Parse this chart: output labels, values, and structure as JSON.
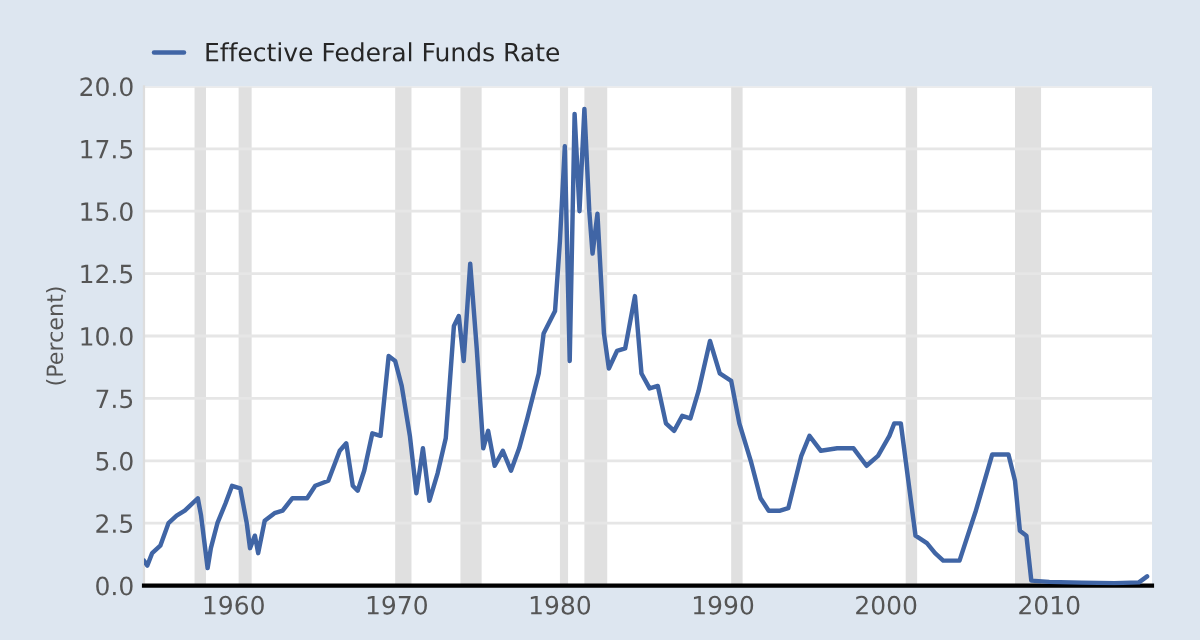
{
  "chart_data": {
    "type": "line",
    "ylabel": "(Percent)",
    "x": [
      1954.5,
      1954.7,
      1955.0,
      1955.5,
      1956.0,
      1956.5,
      1957.0,
      1957.8,
      1958.0,
      1958.4,
      1958.6,
      1959.0,
      1959.5,
      1959.9,
      1960.4,
      1960.8,
      1961.0,
      1961.3,
      1961.5,
      1961.9,
      1962.5,
      1963.0,
      1963.6,
      1964.5,
      1965.0,
      1965.8,
      1966.5,
      1966.9,
      1967.3,
      1967.6,
      1968.0,
      1968.5,
      1969.0,
      1969.5,
      1969.9,
      1970.3,
      1970.8,
      1971.2,
      1971.6,
      1972.0,
      1972.5,
      1973.0,
      1973.5,
      1973.8,
      1974.1,
      1974.5,
      1974.9,
      1975.3,
      1975.6,
      1976.0,
      1976.5,
      1977.0,
      1977.5,
      1978.0,
      1978.7,
      1979.0,
      1979.7,
      1980.0,
      1980.3,
      1980.6,
      1980.9,
      1981.2,
      1981.5,
      1981.8,
      1982.0,
      1982.3,
      1982.7,
      1983.0,
      1983.5,
      1984.0,
      1984.6,
      1985.0,
      1985.5,
      1986.0,
      1986.5,
      1987.0,
      1987.5,
      1988.0,
      1988.5,
      1989.2,
      1989.8,
      1990.5,
      1991.0,
      1991.7,
      1992.3,
      1992.8,
      1993.5,
      1994.0,
      1994.8,
      1995.3,
      1996.0,
      1997.0,
      1998.0,
      1998.8,
      1999.5,
      2000.2,
      2000.5,
      2000.9,
      2001.3,
      2001.8,
      2002.5,
      2003.0,
      2003.5,
      2004.5,
      2005.5,
      2006.5,
      2007.5,
      2007.9,
      2008.2,
      2008.6,
      2008.9,
      2010.0,
      2012.0,
      2014.0,
      2015.5,
      2016.0
    ],
    "series": [
      {
        "name": "Effective Federal Funds Rate",
        "color": "#4065a5",
        "values": [
          1.0,
          0.8,
          1.3,
          1.6,
          2.5,
          2.8,
          3.0,
          3.5,
          2.8,
          0.7,
          1.5,
          2.5,
          3.3,
          4.0,
          3.9,
          2.5,
          1.5,
          2.0,
          1.3,
          2.6,
          2.9,
          3.0,
          3.5,
          3.5,
          4.0,
          4.2,
          5.4,
          5.7,
          4.0,
          3.8,
          4.6,
          6.1,
          6.0,
          9.2,
          9.0,
          8.0,
          6.0,
          3.7,
          5.5,
          3.4,
          4.5,
          5.9,
          10.4,
          10.8,
          9.0,
          12.9,
          9.5,
          5.5,
          6.2,
          4.8,
          5.4,
          4.6,
          5.5,
          6.7,
          8.5,
          10.1,
          11.0,
          13.8,
          17.6,
          9.0,
          18.9,
          15.0,
          19.1,
          15.0,
          13.3,
          14.9,
          10.1,
          8.7,
          9.4,
          9.5,
          11.6,
          8.5,
          7.9,
          8.0,
          6.5,
          6.2,
          6.8,
          6.7,
          7.8,
          9.8,
          8.5,
          8.2,
          6.5,
          5.0,
          3.5,
          3.0,
          3.0,
          3.1,
          5.2,
          6.0,
          5.4,
          5.5,
          5.5,
          4.8,
          5.2,
          6.0,
          6.5,
          6.5,
          4.5,
          2.0,
          1.7,
          1.3,
          1.0,
          1.0,
          3.0,
          5.25,
          5.25,
          4.2,
          2.2,
          2.0,
          0.2,
          0.15,
          0.12,
          0.1,
          0.13,
          0.37
        ]
      }
    ],
    "xlim": [
      1954.5,
      2016.3
    ],
    "ylim": [
      0,
      20
    ],
    "xticks": [
      1960,
      1970,
      1980,
      1990,
      2000,
      2010
    ],
    "yticks": [
      {
        "value": 0,
        "label": "0.0"
      },
      {
        "value": 2.5,
        "label": "2.5"
      },
      {
        "value": 5,
        "label": "5.0"
      },
      {
        "value": 7.5,
        "label": "7.5"
      },
      {
        "value": 10,
        "label": "10.0"
      },
      {
        "value": 12.5,
        "label": "12.5"
      },
      {
        "value": 15,
        "label": "15.0"
      },
      {
        "value": 17.5,
        "label": "17.5"
      },
      {
        "value": 20,
        "label": "20.0"
      }
    ],
    "bands": [
      {
        "axis": "x",
        "from": 1957.6,
        "to": 1958.3,
        "color": "#e0e0e0"
      },
      {
        "axis": "x",
        "from": 1960.3,
        "to": 1961.1,
        "color": "#e0e0e0"
      },
      {
        "axis": "x",
        "from": 1969.9,
        "to": 1970.9,
        "color": "#e0e0e0"
      },
      {
        "axis": "x",
        "from": 1973.9,
        "to": 1975.2,
        "color": "#e0e0e0"
      },
      {
        "axis": "x",
        "from": 1980.0,
        "to": 1980.5,
        "color": "#e0e0e0"
      },
      {
        "axis": "x",
        "from": 1981.5,
        "to": 1982.9,
        "color": "#e0e0e0"
      },
      {
        "axis": "x",
        "from": 1990.5,
        "to": 1991.2,
        "color": "#e0e0e0"
      },
      {
        "axis": "x",
        "from": 2001.2,
        "to": 2001.9,
        "color": "#e0e0e0"
      },
      {
        "axis": "x",
        "from": 2007.9,
        "to": 2009.5,
        "color": "#e0e0e0"
      }
    ],
    "grid": "y",
    "legend": "top left",
    "line_style": "solid"
  }
}
